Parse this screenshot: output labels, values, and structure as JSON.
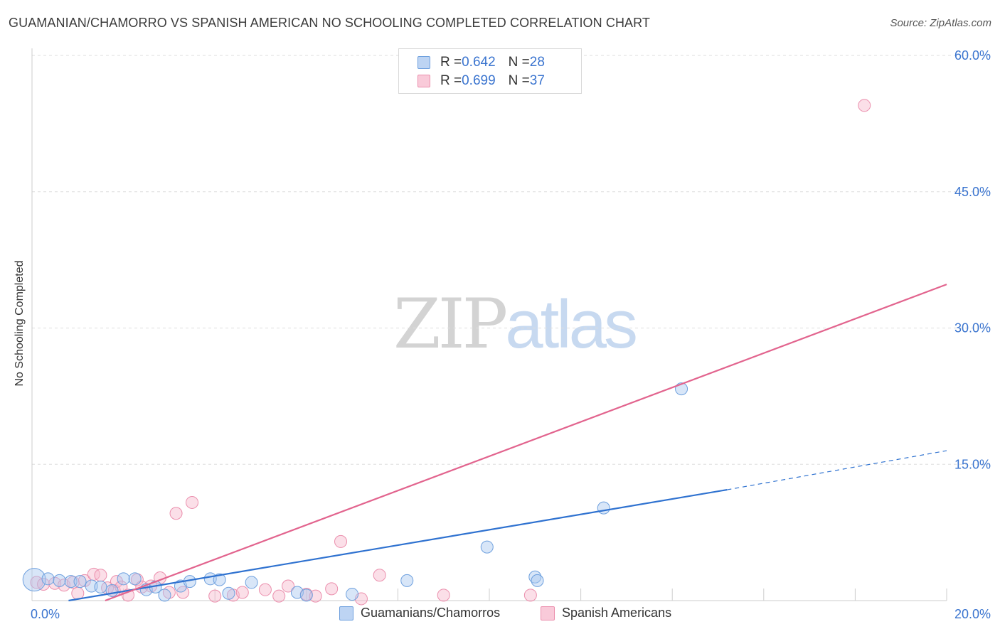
{
  "header": {
    "title": "GUAMANIAN/CHAMORRO VS SPANISH AMERICAN NO SCHOOLING COMPLETED CORRELATION CHART",
    "source": "Source: ZipAtlas.com"
  },
  "watermark": {
    "zip": "ZIP",
    "atlas": "atlas"
  },
  "legend": {
    "rows": [
      {
        "r_label": "R = ",
        "r_value": "0.642",
        "n_label": "N = ",
        "n_value": "28"
      },
      {
        "r_label": "R = ",
        "r_value": "0.699",
        "n_label": "N = ",
        "n_value": "37"
      }
    ],
    "bottom": [
      "Guamanians/Chamorros",
      "Spanish Americans"
    ]
  },
  "colors": {
    "blue_fill": "#a9c8ef",
    "blue_stroke": "#6ea0de",
    "blue_line": "#2f72d0",
    "pink_fill": "#f7b9cc",
    "pink_stroke": "#eb8fad",
    "pink_line": "#e2648e",
    "axis_text": "#3a74cf",
    "grid": "#dddddd"
  },
  "chart_data": {
    "type": "scatter",
    "title": "GUAMANIAN/CHAMORRO VS SPANISH AMERICAN NO SCHOOLING COMPLETED CORRELATION CHART",
    "xlabel": "",
    "ylabel": "No Schooling Completed",
    "xlim": [
      0,
      20
    ],
    "ylim": [
      0,
      60
    ],
    "x_tick_labels": [
      "0.0%",
      "20.0%"
    ],
    "y_ticks": [
      15,
      30,
      45,
      60
    ],
    "y_tick_labels": [
      "15.0%",
      "30.0%",
      "45.0%",
      "60.0%"
    ],
    "grid": true,
    "legend_position": "top-center",
    "series": [
      {
        "name": "Guamanians/Chamorros",
        "color": "#6ea0de",
        "r": 0.642,
        "n": 28,
        "points": [
          [
            0.05,
            2.3
          ],
          [
            0.35,
            2.4
          ],
          [
            0.6,
            2.2
          ],
          [
            0.85,
            2.1
          ],
          [
            1.05,
            2.1
          ],
          [
            1.3,
            1.6
          ],
          [
            1.5,
            1.5
          ],
          [
            1.75,
            1.1
          ],
          [
            2.0,
            2.4
          ],
          [
            2.25,
            2.4
          ],
          [
            2.5,
            1.2
          ],
          [
            2.7,
            1.5
          ],
          [
            2.9,
            0.6
          ],
          [
            3.25,
            1.6
          ],
          [
            3.45,
            2.1
          ],
          [
            3.9,
            2.4
          ],
          [
            4.1,
            2.3
          ],
          [
            4.3,
            0.8
          ],
          [
            4.8,
            2.0
          ],
          [
            5.8,
            0.9
          ],
          [
            6.0,
            0.6
          ],
          [
            7.0,
            0.7
          ],
          [
            8.2,
            2.2
          ],
          [
            9.95,
            5.9
          ],
          [
            11.0,
            2.6
          ],
          [
            11.05,
            2.2
          ],
          [
            12.5,
            10.2
          ],
          [
            14.2,
            23.3
          ]
        ],
        "trend": {
          "from": [
            0.8,
            0
          ],
          "to": [
            15.2,
            12.2
          ],
          "dashed_to": [
            20,
            16.5
          ]
        }
      },
      {
        "name": "Spanish Americans",
        "color": "#eb8fad",
        "r": 0.699,
        "n": 37,
        "points": [
          [
            0.1,
            2.0
          ],
          [
            0.25,
            1.8
          ],
          [
            0.5,
            1.9
          ],
          [
            0.7,
            1.7
          ],
          [
            0.9,
            2.0
          ],
          [
            1.0,
            0.8
          ],
          [
            1.15,
            2.2
          ],
          [
            1.35,
            2.9
          ],
          [
            1.5,
            2.8
          ],
          [
            1.65,
            1.4
          ],
          [
            1.8,
            1.1
          ],
          [
            1.85,
            2.1
          ],
          [
            1.95,
            1.5
          ],
          [
            2.1,
            0.6
          ],
          [
            2.3,
            2.3
          ],
          [
            2.4,
            1.5
          ],
          [
            2.6,
            1.6
          ],
          [
            2.8,
            2.5
          ],
          [
            3.0,
            0.9
          ],
          [
            3.15,
            9.6
          ],
          [
            3.3,
            0.9
          ],
          [
            3.5,
            10.8
          ],
          [
            4.0,
            0.5
          ],
          [
            4.4,
            0.6
          ],
          [
            4.6,
            0.9
          ],
          [
            5.1,
            1.2
          ],
          [
            5.4,
            0.5
          ],
          [
            5.6,
            1.6
          ],
          [
            6.0,
            0.7
          ],
          [
            6.2,
            0.5
          ],
          [
            6.55,
            1.3
          ],
          [
            6.75,
            6.5
          ],
          [
            7.2,
            0.2
          ],
          [
            7.6,
            2.8
          ],
          [
            9.0,
            0.6
          ],
          [
            10.9,
            0.6
          ],
          [
            18.2,
            54.5
          ]
        ],
        "trend": {
          "from": [
            1.6,
            0
          ],
          "to": [
            20,
            34.8
          ]
        }
      }
    ]
  }
}
